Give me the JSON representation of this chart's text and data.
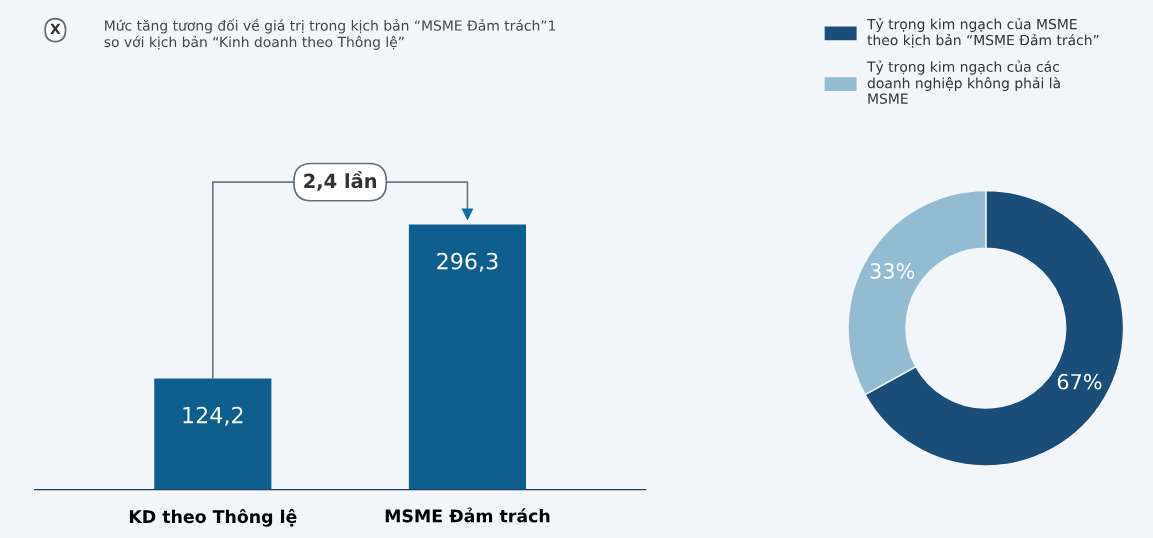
{
  "chart_data": [
    {
      "type": "bar",
      "categories": [
        "KD theo Thông lệ",
        "MSME Đảm trách"
      ],
      "values": [
        124.2,
        296.3
      ],
      "value_labels": [
        "124,2",
        "296,3"
      ],
      "color": "#0e5f8e",
      "tick_labels": "x",
      "grid": false,
      "annotations": [
        "X",
        "Mức tăng tương đối về giá trị trong kịch bản “MSME Đảm trách”1  so với kịch bản “Kinh doanh theo Thông lệ”",
        "2,4 lần"
      ]
    },
    {
      "type": "donut",
      "categories": [
        "Tỷ trọng kim ngạch của MSME theo kịch bản “MSME Đảm trách”",
        "Tỷ trọng kim ngạch của các doanh nghiệp không phải là MSME"
      ],
      "values": [
        67,
        33
      ],
      "colors": [
        "#1a4e78",
        "#93bcd2"
      ],
      "value_labels": [
        "67%",
        "33%"
      ],
      "legend": "top"
    }
  ]
}
